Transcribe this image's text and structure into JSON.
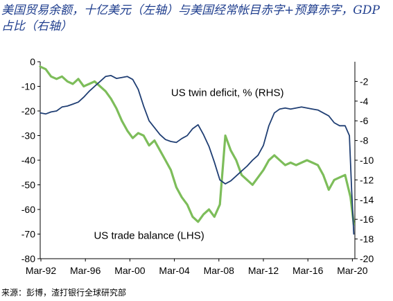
{
  "title": "美国贸易余额，十亿美元（左轴）与美国经常帐目赤字+预算赤字，GDP 占比（右轴）",
  "source": "来源：彭博，渣打银行全球研究部",
  "chart_data": {
    "type": "line",
    "x_tick_labels": [
      "Mar-92",
      "Mar-96",
      "Mar-00",
      "Mar-04",
      "Mar-08",
      "Mar-12",
      "Mar-16",
      "Mar-20"
    ],
    "x_range": [
      1992.0,
      2020.9
    ],
    "left_axis": {
      "ylim": [
        -80,
        0
      ],
      "ticks": [
        0,
        -10,
        -20,
        -30,
        -40,
        -50,
        -60,
        -70,
        -80
      ]
    },
    "right_axis": {
      "ylim": [
        -20,
        0
      ],
      "ticks": [
        -2,
        -4,
        -6,
        -8,
        -10,
        -12,
        -14,
        -16,
        -18,
        -20
      ]
    },
    "grid": false,
    "series": [
      {
        "name": "US trade balance (LHS)",
        "axis": "left",
        "color": "#7dbd5a",
        "points": [
          [
            1992.0,
            -2
          ],
          [
            1992.5,
            -3
          ],
          [
            1993.0,
            -6
          ],
          [
            1993.5,
            -7
          ],
          [
            1994.0,
            -6
          ],
          [
            1994.5,
            -8
          ],
          [
            1995.0,
            -9
          ],
          [
            1995.5,
            -7
          ],
          [
            1996.0,
            -10
          ],
          [
            1996.5,
            -9
          ],
          [
            1997.0,
            -8
          ],
          [
            1997.5,
            -10
          ],
          [
            1998.0,
            -12
          ],
          [
            1998.5,
            -15
          ],
          [
            1999.0,
            -19
          ],
          [
            1999.5,
            -24
          ],
          [
            2000.0,
            -28
          ],
          [
            2000.5,
            -31
          ],
          [
            2001.0,
            -29
          ],
          [
            2001.5,
            -30
          ],
          [
            2002.0,
            -34
          ],
          [
            2002.5,
            -32
          ],
          [
            2003.0,
            -36
          ],
          [
            2003.5,
            -40
          ],
          [
            2004.0,
            -44
          ],
          [
            2004.5,
            -51
          ],
          [
            2005.0,
            -55
          ],
          [
            2005.5,
            -58
          ],
          [
            2006.0,
            -63
          ],
          [
            2006.5,
            -65
          ],
          [
            2007.0,
            -62
          ],
          [
            2007.5,
            -60
          ],
          [
            2008.0,
            -63
          ],
          [
            2008.5,
            -58
          ],
          [
            2009.0,
            -30
          ],
          [
            2009.5,
            -36
          ],
          [
            2010.0,
            -40
          ],
          [
            2010.5,
            -46
          ],
          [
            2011.0,
            -48
          ],
          [
            2011.5,
            -50
          ],
          [
            2012.0,
            -47
          ],
          [
            2012.5,
            -44
          ],
          [
            2013.0,
            -40
          ],
          [
            2013.5,
            -38
          ],
          [
            2014.0,
            -40
          ],
          [
            2014.5,
            -42
          ],
          [
            2015.0,
            -41
          ],
          [
            2015.5,
            -42
          ],
          [
            2016.0,
            -41
          ],
          [
            2016.5,
            -40
          ],
          [
            2017.0,
            -41
          ],
          [
            2017.5,
            -42
          ],
          [
            2018.0,
            -46
          ],
          [
            2018.5,
            -52
          ],
          [
            2019.0,
            -48
          ],
          [
            2019.5,
            -47
          ],
          [
            2020.0,
            -46
          ],
          [
            2020.5,
            -55
          ],
          [
            2020.8,
            -66
          ]
        ]
      },
      {
        "name": "US twin deficit, % (RHS)",
        "axis": "right",
        "color": "#1f3e73",
        "points": [
          [
            1992.0,
            -5.2
          ],
          [
            1992.5,
            -5.3
          ],
          [
            1993.0,
            -5.1
          ],
          [
            1993.5,
            -5.0
          ],
          [
            1994.0,
            -4.6
          ],
          [
            1994.5,
            -4.5
          ],
          [
            1995.0,
            -4.3
          ],
          [
            1995.5,
            -4.1
          ],
          [
            1996.0,
            -3.6
          ],
          [
            1996.5,
            -3.0
          ],
          [
            1997.0,
            -2.5
          ],
          [
            1997.5,
            -2.0
          ],
          [
            1998.0,
            -1.5
          ],
          [
            1998.5,
            -1.4
          ],
          [
            1999.0,
            -1.7
          ],
          [
            1999.5,
            -1.6
          ],
          [
            2000.0,
            -1.5
          ],
          [
            2000.5,
            -1.8
          ],
          [
            2001.0,
            -2.8
          ],
          [
            2001.5,
            -4.5
          ],
          [
            2002.0,
            -6.0
          ],
          [
            2002.5,
            -6.7
          ],
          [
            2003.0,
            -7.4
          ],
          [
            2003.5,
            -7.9
          ],
          [
            2004.0,
            -8.1
          ],
          [
            2004.5,
            -8.2
          ],
          [
            2005.0,
            -7.8
          ],
          [
            2005.5,
            -7.5
          ],
          [
            2006.0,
            -6.8
          ],
          [
            2006.5,
            -6.4
          ],
          [
            2007.0,
            -7.4
          ],
          [
            2007.5,
            -8.6
          ],
          [
            2008.0,
            -10.2
          ],
          [
            2008.5,
            -12.0
          ],
          [
            2009.0,
            -12.4
          ],
          [
            2009.5,
            -12.1
          ],
          [
            2010.0,
            -11.6
          ],
          [
            2010.5,
            -11.1
          ],
          [
            2011.0,
            -10.6
          ],
          [
            2011.5,
            -10.0
          ],
          [
            2012.0,
            -9.5
          ],
          [
            2012.5,
            -8.5
          ],
          [
            2013.0,
            -6.5
          ],
          [
            2013.5,
            -5.2
          ],
          [
            2014.0,
            -4.8
          ],
          [
            2014.5,
            -4.7
          ],
          [
            2015.0,
            -4.8
          ],
          [
            2015.5,
            -4.7
          ],
          [
            2016.0,
            -4.6
          ],
          [
            2016.5,
            -4.7
          ],
          [
            2017.0,
            -4.8
          ],
          [
            2017.5,
            -4.9
          ],
          [
            2018.0,
            -5.2
          ],
          [
            2018.5,
            -5.5
          ],
          [
            2019.0,
            -6.2
          ],
          [
            2019.5,
            -6.5
          ],
          [
            2020.0,
            -6.5
          ],
          [
            2020.4,
            -7.5
          ],
          [
            2020.6,
            -13.0
          ],
          [
            2020.8,
            -17.5
          ]
        ]
      }
    ],
    "annotations": [
      {
        "id": "twin",
        "text": "US twin deficit, % (RHS)",
        "x": 2009.2,
        "y_left": -12.5
      },
      {
        "id": "trade",
        "text": "US trade balance (LHS)",
        "x": 2002.0,
        "y_left": -70.5
      }
    ]
  }
}
